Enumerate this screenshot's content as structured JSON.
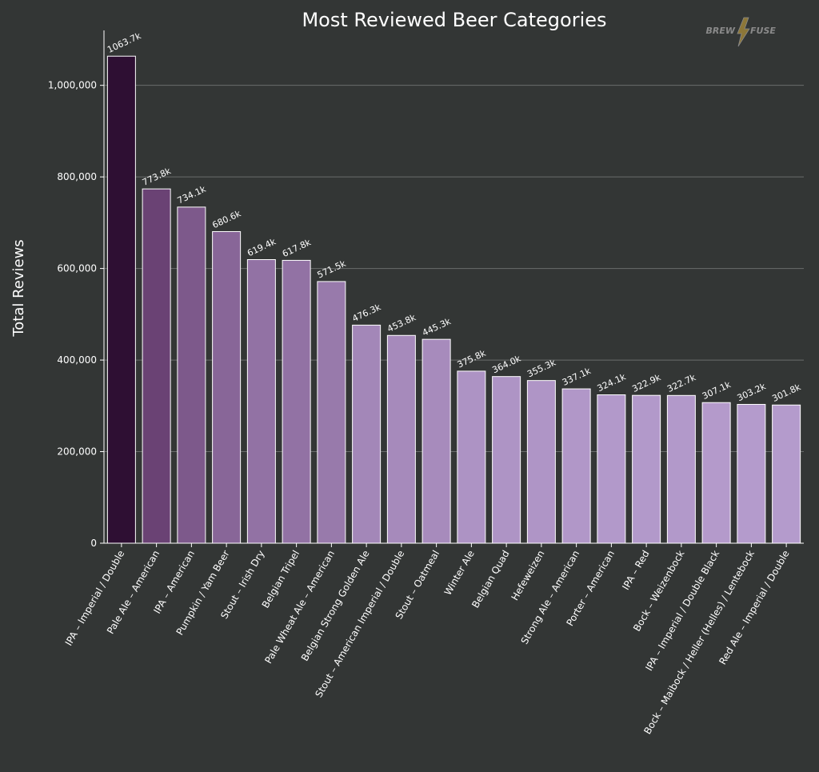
{
  "chart_data": {
    "type": "bar",
    "title": "Most Reviewed Beer Categories",
    "xlabel": "",
    "ylabel": "Total Reviews",
    "ylim": [
      0,
      1120000
    ],
    "yticks": [
      0,
      200000,
      400000,
      600000,
      800000,
      1000000
    ],
    "ytick_labels": [
      "0",
      "200,000",
      "400,000",
      "600,000",
      "800,000",
      "1,000,000"
    ],
    "grid": "horizontal",
    "categories": [
      "IPA – Imperial / Double",
      "Pale Ale – American",
      "IPA – American",
      "Pumpkin / Yam Beer",
      "Stout – Irish Dry",
      "Belgian Tripel",
      "Pale Wheat Ale – American",
      "Belgian Strong Golden Ale",
      "Stout – American Imperial / Double",
      "Stout – Oatmeal",
      "Winter Ale",
      "Belgian Quad",
      "Hefeweizen",
      "Strong Ale – American",
      "Porter – American",
      "IPA – Red",
      "Bock – Weizenbock",
      "IPA – Imperial / Double Black",
      "Bock – Maibock / Heller (Helles) / Lentebock",
      "Red Ale – Imperial / Double"
    ],
    "values": [
      1063700,
      773800,
      734100,
      680600,
      619400,
      617800,
      571500,
      476300,
      453800,
      445300,
      375800,
      364000,
      355300,
      337100,
      324100,
      322900,
      322700,
      307100,
      303200,
      301800
    ],
    "value_labels": [
      "1063.7k",
      "773.8k",
      "734.1k",
      "680.6k",
      "619.4k",
      "617.8k",
      "571.5k",
      "476.3k",
      "453.8k",
      "445.3k",
      "375.8k",
      "364.0k",
      "355.3k",
      "337.1k",
      "324.1k",
      "322.9k",
      "322.7k",
      "307.1k",
      "303.2k",
      "301.8k"
    ],
    "colors": {
      "background": "#333635",
      "bar_max": "#2e0f33",
      "bar_high": "#6a4274",
      "bar_low": "#b49bcc",
      "grid": "#6a6d6c",
      "logo": "#8a8a8a",
      "logo_bolt": "#c9a43a"
    }
  },
  "logo": {
    "text_left": "BREW",
    "text_right": "FUSE",
    "icon": "lightning-bolt-icon"
  }
}
